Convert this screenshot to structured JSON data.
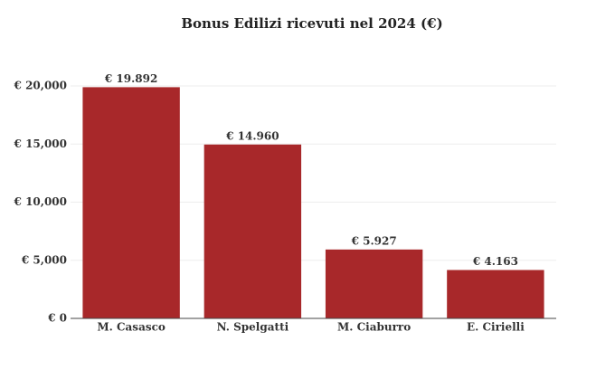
{
  "chart_data": {
    "type": "bar",
    "title": "Bonus Edilizi ricevuti nel 2024 (€)",
    "categories": [
      "M. Casasco",
      "N. Spelgatti",
      "M. Ciaburro",
      "E. Cirielli"
    ],
    "values": [
      19892,
      14960,
      5927,
      4163
    ],
    "value_labels": [
      "€ 19.892",
      "€ 14.960",
      "€ 5.927",
      "€ 4.163"
    ],
    "color": "#a8282a",
    "ylim": [
      0,
      20000
    ],
    "yticks": [
      {
        "value": 0,
        "label": "€ 0"
      },
      {
        "value": 5000,
        "label": "€ 5,000"
      },
      {
        "value": 10000,
        "label": "€ 10,000"
      },
      {
        "value": 15000,
        "label": "€ 15,000"
      },
      {
        "value": 20000,
        "label": "€ 20,000"
      }
    ],
    "grid": true
  }
}
